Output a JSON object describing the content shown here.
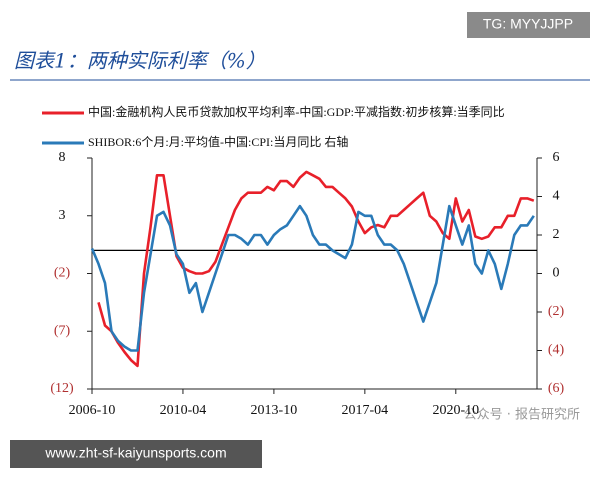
{
  "watermarks": {
    "top_right": "TG: MYYJJPP",
    "bottom_banner": "www.zht-sf-kaiyunsports.com",
    "source": "公众号 · 报告研究所"
  },
  "chart_data": {
    "type": "line",
    "title": "图表1：两种实际利率（%）",
    "x": [
      "2006-10",
      "2007-01",
      "2007-04",
      "2007-07",
      "2007-10",
      "2008-01",
      "2008-04",
      "2008-07",
      "2008-10",
      "2009-01",
      "2009-04",
      "2009-07",
      "2009-10",
      "2010-01",
      "2010-04",
      "2010-07",
      "2010-10",
      "2011-01",
      "2011-04",
      "2011-07",
      "2011-10",
      "2012-01",
      "2012-04",
      "2012-07",
      "2012-10",
      "2013-01",
      "2013-04",
      "2013-07",
      "2013-10",
      "2014-01",
      "2014-04",
      "2014-07",
      "2014-10",
      "2015-01",
      "2015-04",
      "2015-07",
      "2015-10",
      "2016-01",
      "2016-04",
      "2016-07",
      "2016-10",
      "2017-01",
      "2017-04",
      "2017-07",
      "2017-10",
      "2018-01",
      "2018-04",
      "2018-07",
      "2018-10",
      "2019-01",
      "2019-04",
      "2019-07",
      "2019-10",
      "2020-01",
      "2020-04",
      "2020-07",
      "2020-10",
      "2021-01",
      "2021-04",
      "2021-07",
      "2021-10",
      "2022-01",
      "2022-04",
      "2022-07",
      "2022-10",
      "2023-01",
      "2023-04",
      "2023-07",
      "2023-10"
    ],
    "xticks": [
      "2006-10",
      "2010-04",
      "2013-10",
      "2017-04",
      "2020-10"
    ],
    "series": [
      {
        "name": "中国:金融机构人民币贷款加权平均利率-中国:GDP:平减指数:初步核算:当季同比",
        "color": "#e8202a",
        "axis": "y",
        "values": [
          null,
          -4.5,
          -6.5,
          -7,
          -8,
          -8.8,
          -9.5,
          -10,
          -2,
          2,
          6.5,
          6.5,
          3,
          -0.5,
          -1.5,
          -1.8,
          -2,
          -2,
          -1.8,
          -1,
          0.5,
          2,
          3.5,
          4.5,
          5,
          5,
          5,
          5.5,
          5.2,
          6,
          6,
          5.5,
          6.3,
          6.8,
          6.5,
          6.2,
          5.5,
          5.5,
          5,
          4.5,
          3.8,
          2.5,
          1.5,
          2,
          2.2,
          2,
          3,
          3,
          3.5,
          4,
          4.5,
          5,
          3,
          2.5,
          1.5,
          1,
          4.5,
          2.5,
          3.5,
          1.2,
          1,
          1.2,
          2,
          2,
          3,
          3,
          4.5,
          4.5,
          4.3
        ]
      },
      {
        "name": "SHIBOR:6个月:月:平均值-中国:CPI:当月同比 右轴",
        "color": "#2a7ab8",
        "axis": "y2",
        "values": [
          1.3,
          0.5,
          -0.5,
          -3,
          -3.5,
          -3.8,
          -4,
          -4,
          -1,
          1,
          3,
          3.2,
          2.5,
          1,
          0.5,
          -1,
          -0.5,
          -2,
          -1,
          0,
          1,
          2,
          2,
          1.8,
          1.5,
          2,
          2,
          1.5,
          2,
          2.3,
          2.5,
          3,
          3.5,
          3,
          2,
          1.5,
          1.5,
          1.2,
          1,
          0.8,
          1.5,
          3.2,
          3,
          3,
          2,
          1.5,
          1.5,
          1.2,
          0.5,
          -0.5,
          -1.5,
          -2.5,
          -1.5,
          -0.5,
          1.5,
          3.5,
          2.5,
          1.5,
          2.5,
          0.5,
          0,
          1.2,
          0.5,
          -0.8,
          0.5,
          2,
          2.5,
          2.5,
          3
        ]
      }
    ],
    "ylim": [
      -12,
      8
    ],
    "yticks": [
      8,
      3,
      {
        "value": -2,
        "label": "(2)"
      },
      {
        "value": -7,
        "label": "(7)"
      },
      {
        "value": -12,
        "label": "(12)"
      }
    ],
    "y2lim": [
      -6,
      6
    ],
    "y2ticks": [
      6,
      4,
      2,
      0,
      {
        "value": -2,
        "label": "(2)"
      },
      {
        "value": -4,
        "label": "(4)"
      },
      {
        "value": -6,
        "label": "(6)"
      }
    ],
    "negative_label_color": "#b03030",
    "zero_line": true
  }
}
